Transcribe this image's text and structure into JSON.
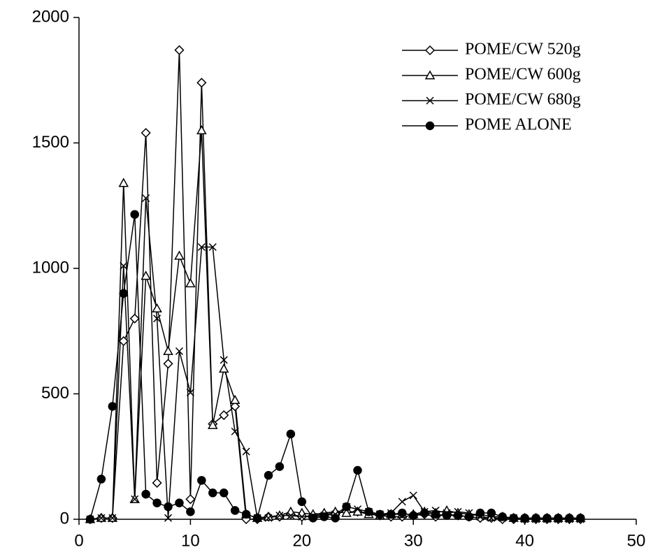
{
  "chart_data": {
    "type": "line",
    "x": [
      1,
      2,
      3,
      4,
      5,
      6,
      7,
      8,
      9,
      10,
      11,
      12,
      13,
      14,
      15,
      16,
      17,
      18,
      19,
      20,
      21,
      22,
      23,
      24,
      25,
      26,
      27,
      28,
      29,
      30,
      31,
      32,
      33,
      34,
      35,
      36,
      37,
      38,
      39,
      40,
      41,
      42,
      43,
      44,
      45
    ],
    "series": [
      {
        "name": "POME/CW 520g",
        "color": "#000000",
        "marker": "diamond",
        "values": [
          0,
          5,
          5,
          710,
          800,
          1540,
          145,
          620,
          1870,
          80,
          1740,
          380,
          415,
          450,
          0,
          0,
          10,
          10,
          20,
          10,
          15,
          20,
          25,
          30,
          30,
          25,
          15,
          10,
          10,
          15,
          20,
          10,
          20,
          15,
          10,
          5,
          5,
          0,
          0,
          0,
          0,
          0,
          0,
          0,
          0
        ]
      },
      {
        "name": "POME/CW 600g",
        "color": "#000000",
        "marker": "triangle",
        "values": [
          0,
          5,
          5,
          1340,
          80,
          970,
          840,
          670,
          1050,
          940,
          1550,
          375,
          600,
          475,
          20,
          5,
          10,
          15,
          30,
          25,
          20,
          25,
          30,
          25,
          30,
          20,
          15,
          20,
          20,
          20,
          30,
          25,
          35,
          25,
          20,
          20,
          10,
          10,
          5,
          5,
          5,
          5,
          5,
          5,
          5
        ]
      },
      {
        "name": "POME/CW 680g",
        "color": "#000000",
        "marker": "x",
        "values": [
          0,
          5,
          5,
          1010,
          80,
          1280,
          800,
          5,
          670,
          505,
          1085,
          1085,
          635,
          350,
          270,
          5,
          5,
          15,
          15,
          10,
          10,
          15,
          20,
          50,
          40,
          30,
          20,
          25,
          70,
          95,
          30,
          35,
          25,
          30,
          25,
          10,
          5,
          5,
          5,
          0,
          0,
          0,
          0,
          0,
          0
        ]
      },
      {
        "name": "POME ALONE",
        "color": "#000000",
        "marker": "circle",
        "values": [
          0,
          160,
          450,
          900,
          1215,
          100,
          65,
          50,
          65,
          30,
          155,
          105,
          105,
          35,
          20,
          5,
          175,
          210,
          340,
          70,
          5,
          10,
          5,
          50,
          195,
          30,
          20,
          20,
          25,
          15,
          25,
          20,
          15,
          15,
          10,
          25,
          25,
          10,
          5,
          5,
          5,
          5,
          5,
          5,
          5
        ]
      }
    ],
    "xlim": [
      0,
      50
    ],
    "xticks": [
      0,
      10,
      20,
      30,
      40,
      50
    ],
    "ylim": [
      0,
      2000
    ],
    "yticks": [
      0,
      500,
      1000,
      1500,
      2000
    ],
    "grid": false,
    "legend": "top-right"
  }
}
